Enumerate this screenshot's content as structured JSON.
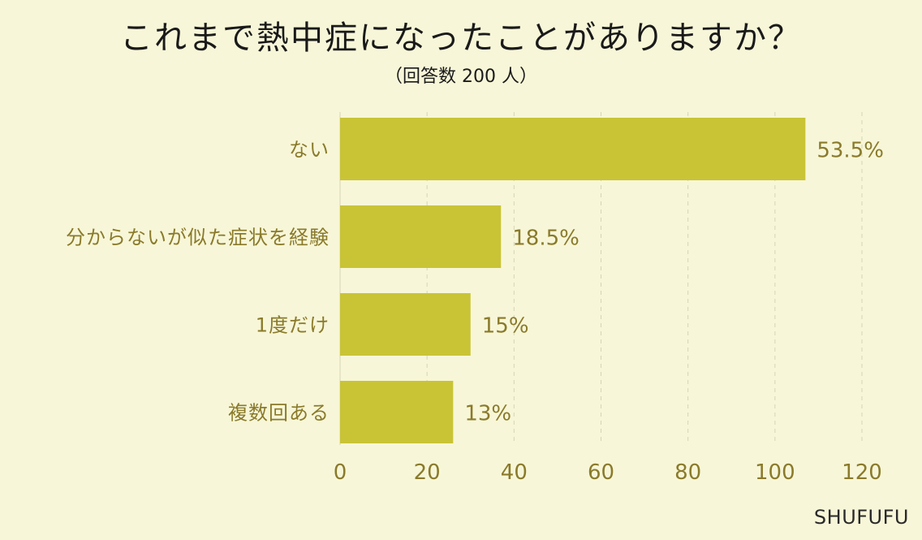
{
  "chart_data": {
    "type": "bar",
    "orientation": "horizontal",
    "title": "これまで熱中症になったことがありますか？",
    "subtitle": "（回答数 200 人）",
    "categories": [
      "ない",
      "分からないが似た症状を経験",
      "1度だけ",
      "複数回ある"
    ],
    "values": [
      107,
      37,
      30,
      26
    ],
    "value_labels": [
      "53.5%",
      "18.5%",
      "15%",
      "13%"
    ],
    "xlim": [
      0,
      120
    ],
    "xticks": [
      0,
      20,
      40,
      60,
      80,
      100,
      120
    ],
    "grid": true,
    "bar_color": "#c9c436",
    "label_color": "#8a7a2a",
    "background": "#f7f6d8"
  },
  "brand": "SHUFUFU"
}
